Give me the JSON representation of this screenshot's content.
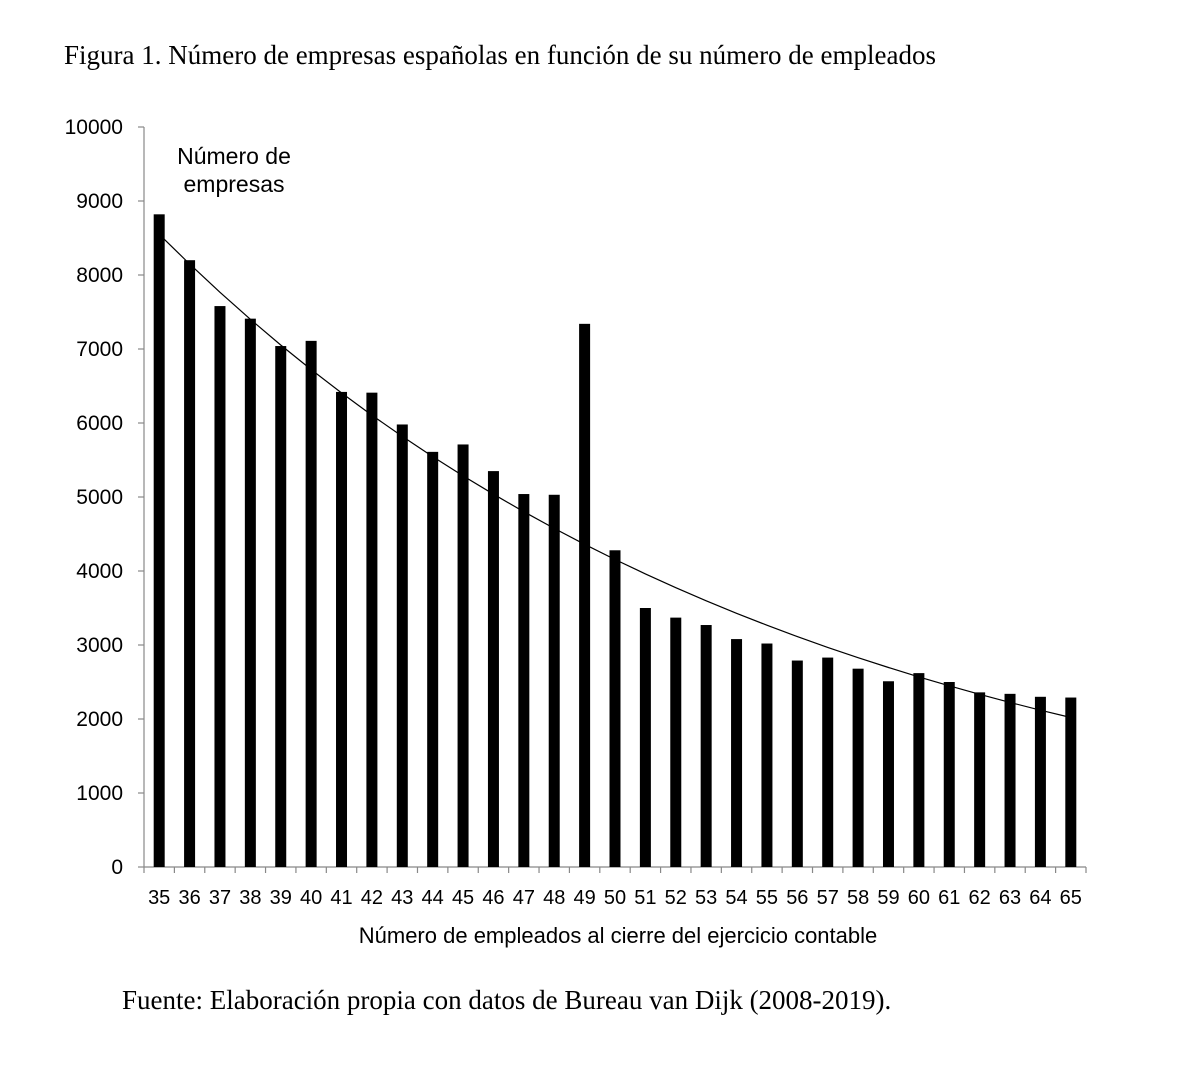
{
  "figure": {
    "title": "Figura 1. Número de empresas españolas en función de su número de empleados",
    "source": "Fuente: Elaboración propia con datos de Bureau van Dijk (2008-2019)."
  },
  "chart_data": {
    "type": "bar",
    "ylabel_line1": "Número de",
    "ylabel_line2": "empresas",
    "xlabel": "Número de empleados al cierre del ejercicio contable",
    "ylim": [
      0,
      10000
    ],
    "yticks": [
      0,
      1000,
      2000,
      3000,
      4000,
      5000,
      6000,
      7000,
      8000,
      9000,
      10000
    ],
    "categories": [
      "35",
      "36",
      "37",
      "38",
      "39",
      "40",
      "41",
      "42",
      "43",
      "44",
      "45",
      "46",
      "47",
      "48",
      "49",
      "50",
      "51",
      "52",
      "53",
      "54",
      "55",
      "56",
      "57",
      "58",
      "59",
      "60",
      "61",
      "62",
      "63",
      "64",
      "65"
    ],
    "values": [
      8820,
      8200,
      7580,
      7410,
      7040,
      7110,
      6420,
      6410,
      5980,
      5610,
      5710,
      5350,
      5040,
      5030,
      7340,
      4280,
      3500,
      3370,
      3270,
      3080,
      3020,
      2790,
      2830,
      2680,
      2510,
      2620,
      2500,
      2360,
      2340,
      2300,
      2290
    ],
    "trendline": {
      "type": "exponential",
      "start": 8550,
      "end": 2020
    },
    "bar_color": "#000000",
    "grid": false,
    "legend": "none"
  }
}
